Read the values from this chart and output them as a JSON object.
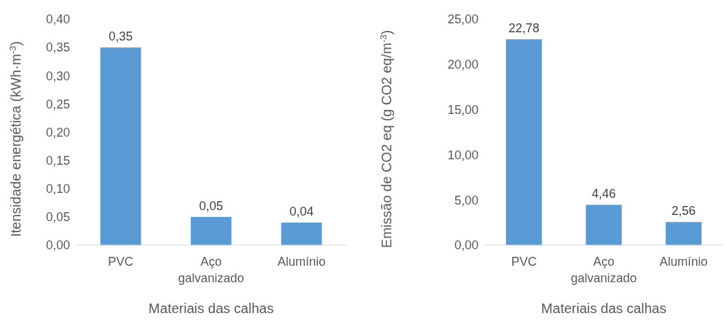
{
  "chart_data": [
    {
      "type": "bar",
      "xlabel": "Materiais das calhas",
      "ylabel": "Itensidade energética (kWh·m$^{-3}$)",
      "categories": [
        "PVC",
        "Aço galvanizado",
        "Alumínio"
      ],
      "values": [
        0.35,
        0.05,
        0.04
      ],
      "value_labels": [
        "0,35",
        "0,05",
        "0,04"
      ],
      "color": "#5b9bd5",
      "ylim": [
        0,
        0.4
      ],
      "yticks": [
        {
          "value": 0,
          "label": "0,00"
        },
        {
          "value": 0.05,
          "label": "0,05"
        },
        {
          "value": 0.1,
          "label": "0,10"
        },
        {
          "value": 0.15,
          "label": "0,15"
        },
        {
          "value": 0.2,
          "label": "0,20"
        },
        {
          "value": 0.25,
          "label": "0,25"
        },
        {
          "value": 0.3,
          "label": "0,30"
        },
        {
          "value": 0.35,
          "label": "0,35"
        },
        {
          "value": 0.4,
          "label": "0,40"
        }
      ],
      "grid": false
    },
    {
      "type": "bar",
      "xlabel": "Materiais das calhas",
      "ylabel": "Emissão de CO2 eq (g CO2 eq/m$^{-3}$)",
      "categories": [
        "PVC",
        "Aço galvanizado",
        "Alumínio"
      ],
      "values": [
        22.78,
        4.46,
        2.56
      ],
      "value_labels": [
        "22,78",
        "4,46",
        "2,56"
      ],
      "color": "#5b9bd5",
      "ylim": [
        0,
        25
      ],
      "yticks": [
        {
          "value": 0,
          "label": "0,00"
        },
        {
          "value": 5,
          "label": "5,00"
        },
        {
          "value": 10,
          "label": "10,00"
        },
        {
          "value": 15,
          "label": "15,00"
        },
        {
          "value": 20,
          "label": "20,00"
        },
        {
          "value": 25,
          "label": "25,00"
        }
      ],
      "grid": false
    }
  ]
}
